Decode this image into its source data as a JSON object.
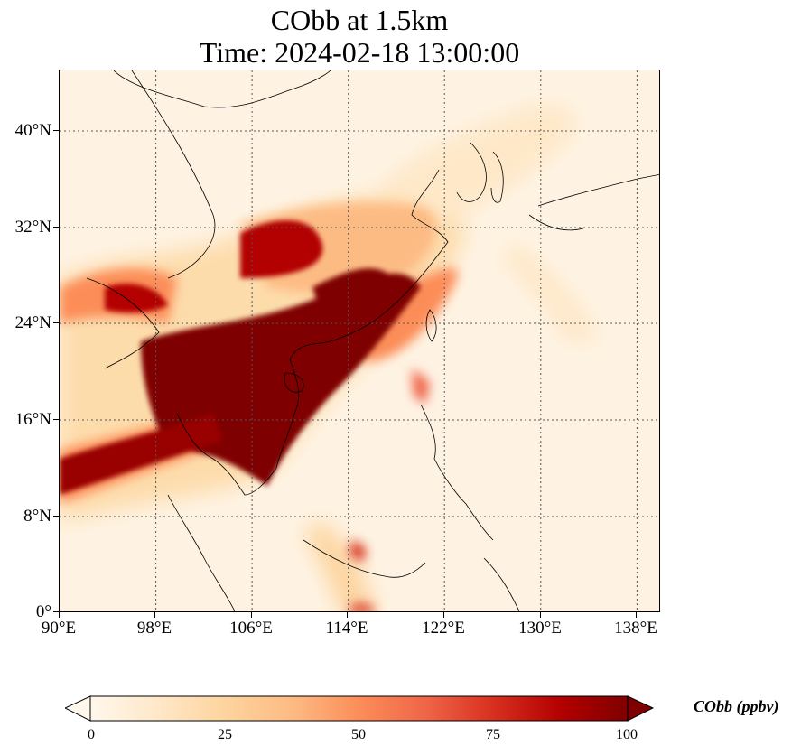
{
  "title": {
    "line1": "CObb at 1.5km",
    "line2": "Time: 2024-02-18 13:00:00"
  },
  "map": {
    "lon_range": [
      90,
      140
    ],
    "lat_range": [
      0,
      45
    ],
    "lat_ticks": [
      "0°",
      "8°N",
      "16°N",
      "24°N",
      "32°N",
      "40°N"
    ],
    "lon_ticks": [
      "90°E",
      "98°E",
      "106°E",
      "114°E",
      "122°E",
      "130°E",
      "138°E"
    ],
    "gridlines": "dotted",
    "colormap": "OrRd",
    "colors": {
      "low": "#fff7ec",
      "mid": "#fc8d59",
      "high": "#7f0000"
    }
  },
  "colorbar": {
    "label": "CObb (ppbv)",
    "ticks": [
      "0",
      "25",
      "50",
      "75",
      "100"
    ],
    "range": [
      0,
      100
    ],
    "extend": "both"
  }
}
